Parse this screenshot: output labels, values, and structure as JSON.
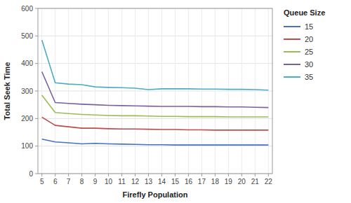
{
  "chart_data": {
    "type": "line",
    "x": [
      5,
      6,
      7,
      8,
      9,
      10,
      11,
      12,
      13,
      14,
      15,
      16,
      17,
      18,
      19,
      20,
      21,
      22
    ],
    "series": [
      {
        "name": "15",
        "color": "#4472c4",
        "values": [
          125,
          115,
          112,
          108,
          110,
          108,
          107,
          106,
          105,
          105,
          104,
          104,
          104,
          104,
          104,
          104,
          104,
          104
        ]
      },
      {
        "name": "20",
        "color": "#be4b48",
        "values": [
          205,
          175,
          170,
          165,
          165,
          163,
          162,
          162,
          161,
          160,
          160,
          159,
          159,
          158,
          158,
          158,
          158,
          158
        ]
      },
      {
        "name": "25",
        "color": "#9bbb59",
        "values": [
          285,
          222,
          218,
          215,
          213,
          211,
          210,
          210,
          209,
          208,
          208,
          207,
          207,
          207,
          206,
          206,
          206,
          206
        ]
      },
      {
        "name": "30",
        "color": "#7b60a0",
        "values": [
          370,
          258,
          255,
          252,
          250,
          248,
          247,
          246,
          245,
          244,
          244,
          244,
          243,
          243,
          242,
          242,
          241,
          240
        ]
      },
      {
        "name": "35",
        "color": "#4bacc6",
        "values": [
          485,
          330,
          325,
          323,
          315,
          313,
          312,
          310,
          305,
          308,
          308,
          308,
          307,
          307,
          306,
          306,
          305,
          303
        ]
      }
    ],
    "xlabel": "Firefly Population",
    "ylabel": "Total Seek Time",
    "legend_title": "Queue Size",
    "xlim": [
      4.7,
      22.3
    ],
    "xticks": [
      5,
      6,
      7,
      8,
      9,
      10,
      11,
      12,
      13,
      14,
      15,
      16,
      17,
      18,
      19,
      20,
      21,
      22
    ],
    "ylim": [
      0,
      600
    ],
    "yticks": [
      0,
      100,
      200,
      300,
      400,
      500,
      600
    ],
    "grid": true,
    "legend": "right"
  }
}
